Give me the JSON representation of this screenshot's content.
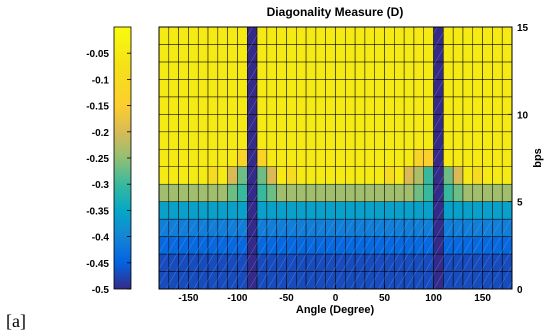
{
  "figure_label": "[a]",
  "chart_data": {
    "type": "heatmap",
    "title": "Diagonality Measure (D)",
    "xlabel": "Angle (Degree)",
    "ylabel": "bps",
    "xlim": [
      -180,
      180
    ],
    "ylim": [
      0,
      15
    ],
    "xticks": [
      -150,
      -100,
      -50,
      0,
      50,
      100,
      150
    ],
    "yticks": [
      0,
      5,
      10,
      15
    ],
    "colorbar": {
      "ticks": [
        "-0.05",
        "-0.1",
        "-0.15",
        "-0.2",
        "-0.25",
        "-0.3",
        "-0.35",
        "-0.4",
        "-0.45",
        "-0.5"
      ],
      "tick_values": [
        -0.05,
        -0.1,
        -0.15,
        -0.2,
        -0.25,
        -0.3,
        -0.35,
        -0.4,
        -0.45,
        -0.5
      ],
      "range": [
        -0.5,
        0
      ],
      "colormap": "parula"
    },
    "x_centers": [
      -175,
      -165,
      -155,
      -145,
      -135,
      -125,
      -115,
      -105,
      -95,
      -85,
      -75,
      -65,
      -55,
      -45,
      -35,
      -25,
      -15,
      -5,
      5,
      15,
      25,
      35,
      45,
      55,
      65,
      75,
      85,
      95,
      105,
      115,
      125,
      135,
      145,
      155,
      165,
      175
    ],
    "y_centers": [
      0.5,
      1.5,
      2.5,
      3.5,
      4.5,
      5.5,
      6.5,
      7.5,
      8.5,
      9.5,
      10.5,
      11.5,
      12.5,
      13.5,
      14.5
    ],
    "values": [
      [
        -0.47,
        -0.47,
        -0.47,
        -0.47,
        -0.47,
        -0.47,
        -0.47,
        -0.47,
        -0.47,
        -0.5,
        -0.47,
        -0.47,
        -0.47,
        -0.47,
        -0.47,
        -0.47,
        -0.47,
        -0.47,
        -0.47,
        -0.47,
        -0.47,
        -0.47,
        -0.47,
        -0.47,
        -0.47,
        -0.47,
        -0.47,
        -0.47,
        -0.5,
        -0.47,
        -0.47,
        -0.47,
        -0.47,
        -0.47,
        -0.47,
        -0.47
      ],
      [
        -0.47,
        -0.47,
        -0.47,
        -0.47,
        -0.47,
        -0.47,
        -0.47,
        -0.47,
        -0.47,
        -0.5,
        -0.47,
        -0.47,
        -0.47,
        -0.47,
        -0.47,
        -0.47,
        -0.47,
        -0.47,
        -0.47,
        -0.47,
        -0.47,
        -0.47,
        -0.47,
        -0.47,
        -0.47,
        -0.47,
        -0.47,
        -0.47,
        -0.5,
        -0.47,
        -0.47,
        -0.47,
        -0.47,
        -0.47,
        -0.47,
        -0.47
      ],
      [
        -0.44,
        -0.44,
        -0.44,
        -0.44,
        -0.44,
        -0.44,
        -0.44,
        -0.44,
        -0.44,
        -0.5,
        -0.44,
        -0.44,
        -0.44,
        -0.44,
        -0.44,
        -0.44,
        -0.44,
        -0.44,
        -0.44,
        -0.44,
        -0.44,
        -0.44,
        -0.44,
        -0.44,
        -0.44,
        -0.44,
        -0.44,
        -0.44,
        -0.5,
        -0.44,
        -0.44,
        -0.44,
        -0.44,
        -0.44,
        -0.44,
        -0.44
      ],
      [
        -0.41,
        -0.41,
        -0.41,
        -0.41,
        -0.41,
        -0.41,
        -0.41,
        -0.41,
        -0.41,
        -0.5,
        -0.41,
        -0.41,
        -0.41,
        -0.41,
        -0.41,
        -0.41,
        -0.41,
        -0.41,
        -0.41,
        -0.41,
        -0.41,
        -0.41,
        -0.41,
        -0.41,
        -0.41,
        -0.41,
        -0.41,
        -0.41,
        -0.5,
        -0.41,
        -0.41,
        -0.41,
        -0.41,
        -0.41,
        -0.41,
        -0.41
      ],
      [
        -0.36,
        -0.36,
        -0.36,
        -0.36,
        -0.36,
        -0.36,
        -0.36,
        -0.36,
        -0.36,
        -0.5,
        -0.36,
        -0.36,
        -0.36,
        -0.36,
        -0.36,
        -0.36,
        -0.36,
        -0.36,
        -0.36,
        -0.36,
        -0.36,
        -0.36,
        -0.36,
        -0.36,
        -0.36,
        -0.36,
        -0.36,
        -0.36,
        -0.5,
        -0.36,
        -0.36,
        -0.36,
        -0.36,
        -0.36,
        -0.36,
        -0.36
      ],
      [
        -0.24,
        -0.24,
        -0.24,
        -0.24,
        -0.24,
        -0.24,
        -0.24,
        -0.27,
        -0.3,
        -0.5,
        -0.3,
        -0.27,
        -0.24,
        -0.24,
        -0.24,
        -0.24,
        -0.24,
        -0.24,
        -0.24,
        -0.24,
        -0.24,
        -0.24,
        -0.24,
        -0.24,
        -0.24,
        -0.24,
        -0.27,
        -0.3,
        -0.5,
        -0.3,
        -0.27,
        -0.24,
        -0.24,
        -0.24,
        -0.24,
        -0.24
      ],
      [
        -0.05,
        -0.05,
        -0.05,
        -0.05,
        -0.05,
        -0.1,
        -0.05,
        -0.2,
        -0.27,
        -0.5,
        -0.27,
        -0.2,
        -0.05,
        -0.1,
        -0.05,
        -0.05,
        -0.05,
        -0.05,
        -0.05,
        -0.05,
        -0.05,
        -0.05,
        -0.05,
        -0.1,
        -0.05,
        -0.2,
        -0.23,
        -0.3,
        -0.5,
        -0.27,
        -0.2,
        -0.05,
        -0.1,
        -0.05,
        -0.05,
        -0.05
      ],
      [
        -0.05,
        -0.05,
        -0.05,
        -0.05,
        -0.05,
        -0.05,
        -0.05,
        -0.05,
        -0.13,
        -0.5,
        -0.13,
        -0.05,
        -0.05,
        -0.05,
        -0.05,
        -0.05,
        -0.05,
        -0.05,
        -0.05,
        -0.05,
        -0.05,
        -0.05,
        -0.05,
        -0.05,
        -0.05,
        -0.05,
        -0.13,
        -0.15,
        -0.5,
        -0.05,
        -0.05,
        -0.05,
        -0.05,
        -0.05,
        -0.05,
        -0.05
      ],
      [
        -0.05,
        -0.05,
        -0.05,
        -0.05,
        -0.05,
        -0.05,
        -0.05,
        -0.05,
        -0.05,
        -0.5,
        -0.05,
        -0.05,
        -0.05,
        -0.05,
        -0.05,
        -0.05,
        -0.05,
        -0.05,
        -0.05,
        -0.05,
        -0.05,
        -0.05,
        -0.05,
        -0.05,
        -0.05,
        -0.05,
        -0.05,
        -0.05,
        -0.5,
        -0.05,
        -0.05,
        -0.05,
        -0.05,
        -0.05,
        -0.05,
        -0.05
      ],
      [
        -0.05,
        -0.05,
        -0.05,
        -0.05,
        -0.05,
        -0.05,
        -0.05,
        -0.05,
        -0.05,
        -0.5,
        -0.05,
        -0.05,
        -0.05,
        -0.05,
        -0.05,
        -0.05,
        -0.05,
        -0.05,
        -0.05,
        -0.05,
        -0.05,
        -0.05,
        -0.05,
        -0.05,
        -0.05,
        -0.05,
        -0.05,
        -0.05,
        -0.5,
        -0.05,
        -0.05,
        -0.05,
        -0.05,
        -0.05,
        -0.05,
        -0.05
      ],
      [
        -0.05,
        -0.05,
        -0.05,
        -0.05,
        -0.05,
        -0.05,
        -0.05,
        -0.05,
        -0.05,
        -0.5,
        -0.05,
        -0.05,
        -0.05,
        -0.05,
        -0.05,
        -0.05,
        -0.05,
        -0.05,
        -0.05,
        -0.05,
        -0.05,
        -0.05,
        -0.05,
        -0.05,
        -0.05,
        -0.05,
        -0.05,
        -0.05,
        -0.5,
        -0.05,
        -0.05,
        -0.05,
        -0.05,
        -0.05,
        -0.05,
        -0.05
      ],
      [
        -0.05,
        -0.05,
        -0.05,
        -0.05,
        -0.05,
        -0.05,
        -0.05,
        -0.05,
        -0.05,
        -0.5,
        -0.05,
        -0.05,
        -0.05,
        -0.05,
        -0.05,
        -0.05,
        -0.05,
        -0.05,
        -0.05,
        -0.05,
        -0.05,
        -0.05,
        -0.05,
        -0.05,
        -0.05,
        -0.05,
        -0.05,
        -0.05,
        -0.5,
        -0.05,
        -0.05,
        -0.05,
        -0.05,
        -0.05,
        -0.05,
        -0.05
      ],
      [
        -0.05,
        -0.05,
        -0.05,
        -0.05,
        -0.05,
        -0.05,
        -0.05,
        -0.05,
        -0.05,
        -0.5,
        -0.05,
        -0.05,
        -0.05,
        -0.05,
        -0.05,
        -0.05,
        -0.05,
        -0.05,
        -0.05,
        -0.05,
        -0.05,
        -0.05,
        -0.05,
        -0.05,
        -0.05,
        -0.05,
        -0.05,
        -0.05,
        -0.5,
        -0.05,
        -0.05,
        -0.05,
        -0.05,
        -0.05,
        -0.05,
        -0.05
      ],
      [
        -0.05,
        -0.05,
        -0.05,
        -0.05,
        -0.05,
        -0.05,
        -0.05,
        -0.05,
        -0.05,
        -0.5,
        -0.05,
        -0.05,
        -0.05,
        -0.05,
        -0.05,
        -0.05,
        -0.05,
        -0.05,
        -0.05,
        -0.05,
        -0.05,
        -0.05,
        -0.05,
        -0.05,
        -0.05,
        -0.05,
        -0.05,
        -0.05,
        -0.5,
        -0.05,
        -0.05,
        -0.05,
        -0.05,
        -0.05,
        -0.05,
        -0.05
      ],
      [
        -0.05,
        -0.05,
        -0.05,
        -0.05,
        -0.05,
        -0.05,
        -0.05,
        -0.05,
        -0.05,
        -0.5,
        -0.05,
        -0.05,
        -0.05,
        -0.05,
        -0.05,
        -0.05,
        -0.05,
        -0.05,
        -0.05,
        -0.05,
        -0.05,
        -0.05,
        -0.05,
        -0.05,
        -0.05,
        -0.05,
        -0.05,
        -0.05,
        -0.5,
        -0.05,
        -0.05,
        -0.05,
        -0.05,
        -0.05,
        -0.05,
        -0.05
      ]
    ]
  }
}
